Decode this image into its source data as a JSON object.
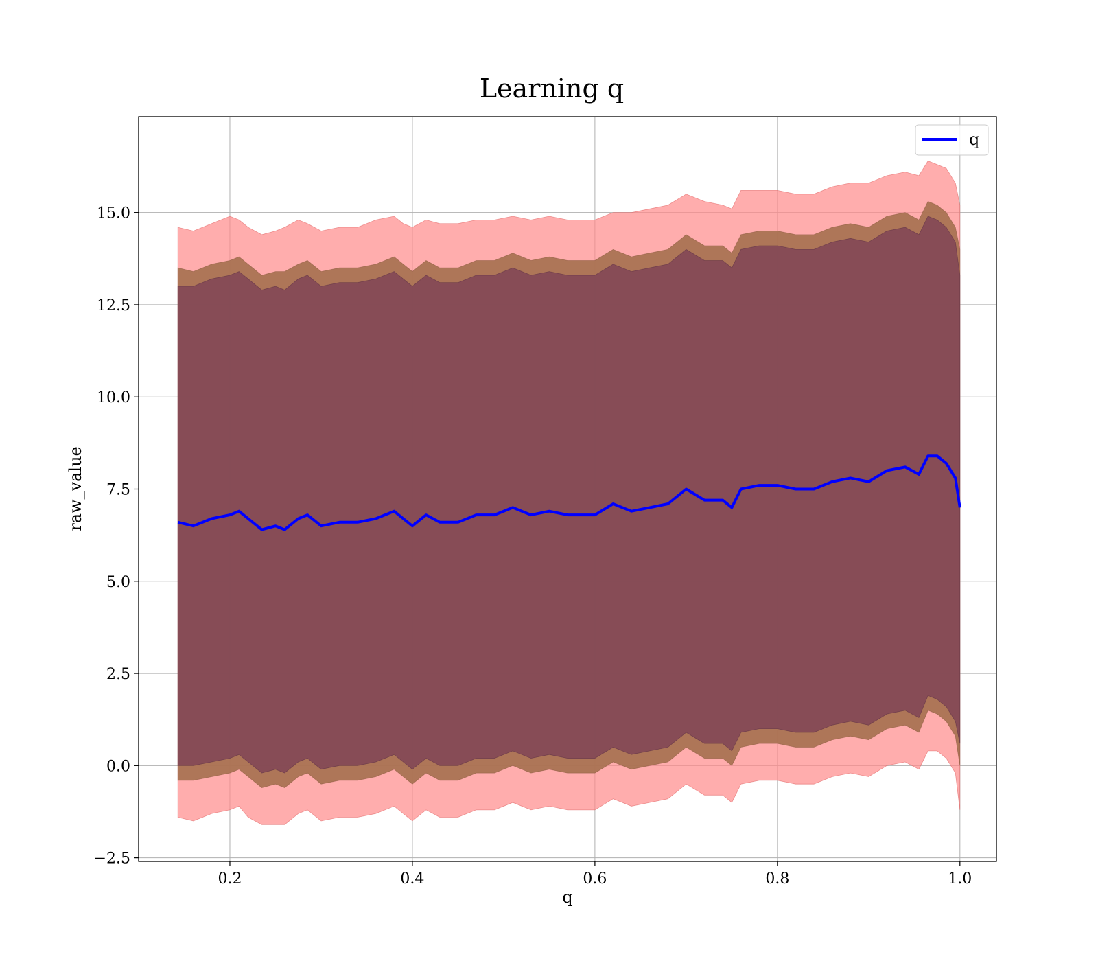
{
  "chart_data": {
    "type": "area",
    "title": "Learning q",
    "xlabel": "q",
    "ylabel": "raw_value",
    "xlim": [
      0.1,
      1.04
    ],
    "ylim": [
      -2.6,
      17.6
    ],
    "xticks": [
      0.2,
      0.4,
      0.6,
      0.8,
      1.0
    ],
    "xtick_labels": [
      "0.2",
      "0.4",
      "0.6",
      "0.8",
      "1.0"
    ],
    "yticks": [
      -2.5,
      0.0,
      2.5,
      5.0,
      7.5,
      10.0,
      12.5,
      15.0
    ],
    "ytick_labels": [
      "−2.5",
      "0.0",
      "2.5",
      "5.0",
      "7.5",
      "10.0",
      "12.5",
      "15.0"
    ],
    "grid": true,
    "legend": {
      "position": "top-right",
      "entries": [
        "q"
      ]
    },
    "colors": {
      "line": "#0000ff",
      "outer_band": "#ff8a8a",
      "middle_band": "#a5704f",
      "inner_band": "#7a3f55"
    },
    "series": [
      {
        "name": "q",
        "x": [
          0.143,
          0.16,
          0.18,
          0.2,
          0.21,
          0.22,
          0.235,
          0.25,
          0.26,
          0.275,
          0.285,
          0.3,
          0.32,
          0.34,
          0.36,
          0.38,
          0.39,
          0.4,
          0.415,
          0.43,
          0.45,
          0.47,
          0.49,
          0.51,
          0.53,
          0.55,
          0.57,
          0.6,
          0.62,
          0.64,
          0.66,
          0.68,
          0.7,
          0.72,
          0.74,
          0.75,
          0.76,
          0.78,
          0.8,
          0.82,
          0.84,
          0.86,
          0.88,
          0.9,
          0.92,
          0.94,
          0.955,
          0.965,
          0.975,
          0.985,
          0.995,
          1.0
        ],
        "y": [
          6.6,
          6.5,
          6.7,
          6.8,
          6.9,
          6.7,
          6.4,
          6.5,
          6.4,
          6.7,
          6.8,
          6.5,
          6.6,
          6.6,
          6.7,
          6.9,
          6.7,
          6.5,
          6.8,
          6.6,
          6.6,
          6.8,
          6.8,
          7.0,
          6.8,
          6.9,
          6.8,
          6.8,
          7.1,
          6.9,
          7.0,
          7.1,
          7.5,
          7.2,
          7.2,
          7.0,
          7.5,
          7.6,
          7.6,
          7.5,
          7.5,
          7.7,
          7.8,
          7.7,
          8.0,
          8.1,
          7.9,
          8.4,
          8.4,
          8.2,
          7.8,
          7.0
        ]
      }
    ],
    "bands": [
      {
        "name": "outer",
        "upper": [
          14.6,
          14.5,
          14.7,
          14.9,
          14.8,
          14.6,
          14.4,
          14.5,
          14.6,
          14.8,
          14.7,
          14.5,
          14.6,
          14.6,
          14.8,
          14.9,
          14.7,
          14.6,
          14.8,
          14.7,
          14.7,
          14.8,
          14.8,
          14.9,
          14.8,
          14.9,
          14.8,
          14.8,
          15.0,
          15.0,
          15.1,
          15.2,
          15.5,
          15.3,
          15.2,
          15.1,
          15.6,
          15.6,
          15.6,
          15.5,
          15.5,
          15.7,
          15.8,
          15.8,
          16.0,
          16.1,
          16.0,
          16.4,
          16.3,
          16.2,
          15.8,
          15.2
        ],
        "lower": [
          -1.4,
          -1.5,
          -1.3,
          -1.2,
          -1.1,
          -1.4,
          -1.6,
          -1.6,
          -1.6,
          -1.3,
          -1.2,
          -1.5,
          -1.4,
          -1.4,
          -1.3,
          -1.1,
          -1.3,
          -1.5,
          -1.2,
          -1.4,
          -1.4,
          -1.2,
          -1.2,
          -1.0,
          -1.2,
          -1.1,
          -1.2,
          -1.2,
          -0.9,
          -1.1,
          -1.0,
          -0.9,
          -0.5,
          -0.8,
          -0.8,
          -1.0,
          -0.5,
          -0.4,
          -0.4,
          -0.5,
          -0.5,
          -0.3,
          -0.2,
          -0.3,
          0.0,
          0.1,
          -0.1,
          0.4,
          0.4,
          0.2,
          -0.2,
          -1.2
        ]
      },
      {
        "name": "middle",
        "upper": [
          13.5,
          13.4,
          13.6,
          13.7,
          13.8,
          13.6,
          13.3,
          13.4,
          13.4,
          13.6,
          13.7,
          13.4,
          13.5,
          13.5,
          13.6,
          13.8,
          13.6,
          13.4,
          13.7,
          13.5,
          13.5,
          13.7,
          13.7,
          13.9,
          13.7,
          13.8,
          13.7,
          13.7,
          14.0,
          13.8,
          13.9,
          14.0,
          14.4,
          14.1,
          14.1,
          13.9,
          14.4,
          14.5,
          14.5,
          14.4,
          14.4,
          14.6,
          14.7,
          14.6,
          14.9,
          15.0,
          14.8,
          15.3,
          15.2,
          15.0,
          14.6,
          14.0
        ],
        "lower": [
          -0.4,
          -0.4,
          -0.3,
          -0.2,
          -0.1,
          -0.3,
          -0.6,
          -0.5,
          -0.6,
          -0.3,
          -0.2,
          -0.5,
          -0.4,
          -0.4,
          -0.3,
          -0.1,
          -0.3,
          -0.5,
          -0.2,
          -0.4,
          -0.4,
          -0.2,
          -0.2,
          0.0,
          -0.2,
          -0.1,
          -0.2,
          -0.2,
          0.1,
          -0.1,
          0.0,
          0.1,
          0.5,
          0.2,
          0.2,
          0.0,
          0.5,
          0.6,
          0.6,
          0.5,
          0.5,
          0.7,
          0.8,
          0.7,
          1.0,
          1.1,
          0.9,
          1.5,
          1.4,
          1.2,
          0.8,
          0.0
        ]
      },
      {
        "name": "inner",
        "upper": [
          13.0,
          13.0,
          13.2,
          13.3,
          13.4,
          13.2,
          12.9,
          13.0,
          12.9,
          13.2,
          13.3,
          13.0,
          13.1,
          13.1,
          13.2,
          13.4,
          13.2,
          13.0,
          13.3,
          13.1,
          13.1,
          13.3,
          13.3,
          13.5,
          13.3,
          13.4,
          13.3,
          13.3,
          13.6,
          13.4,
          13.5,
          13.6,
          14.0,
          13.7,
          13.7,
          13.5,
          14.0,
          14.1,
          14.1,
          14.0,
          14.0,
          14.2,
          14.3,
          14.2,
          14.5,
          14.6,
          14.4,
          14.9,
          14.8,
          14.6,
          14.2,
          13.3
        ],
        "lower": [
          0.0,
          0.0,
          0.1,
          0.2,
          0.3,
          0.1,
          -0.2,
          -0.1,
          -0.2,
          0.1,
          0.2,
          -0.1,
          0.0,
          0.0,
          0.1,
          0.3,
          0.1,
          -0.1,
          0.2,
          0.0,
          0.0,
          0.2,
          0.2,
          0.4,
          0.2,
          0.3,
          0.2,
          0.2,
          0.5,
          0.3,
          0.4,
          0.5,
          0.9,
          0.6,
          0.6,
          0.4,
          0.9,
          1.0,
          1.0,
          0.9,
          0.9,
          1.1,
          1.2,
          1.1,
          1.4,
          1.5,
          1.3,
          1.9,
          1.8,
          1.6,
          1.2,
          0.6
        ]
      }
    ]
  }
}
